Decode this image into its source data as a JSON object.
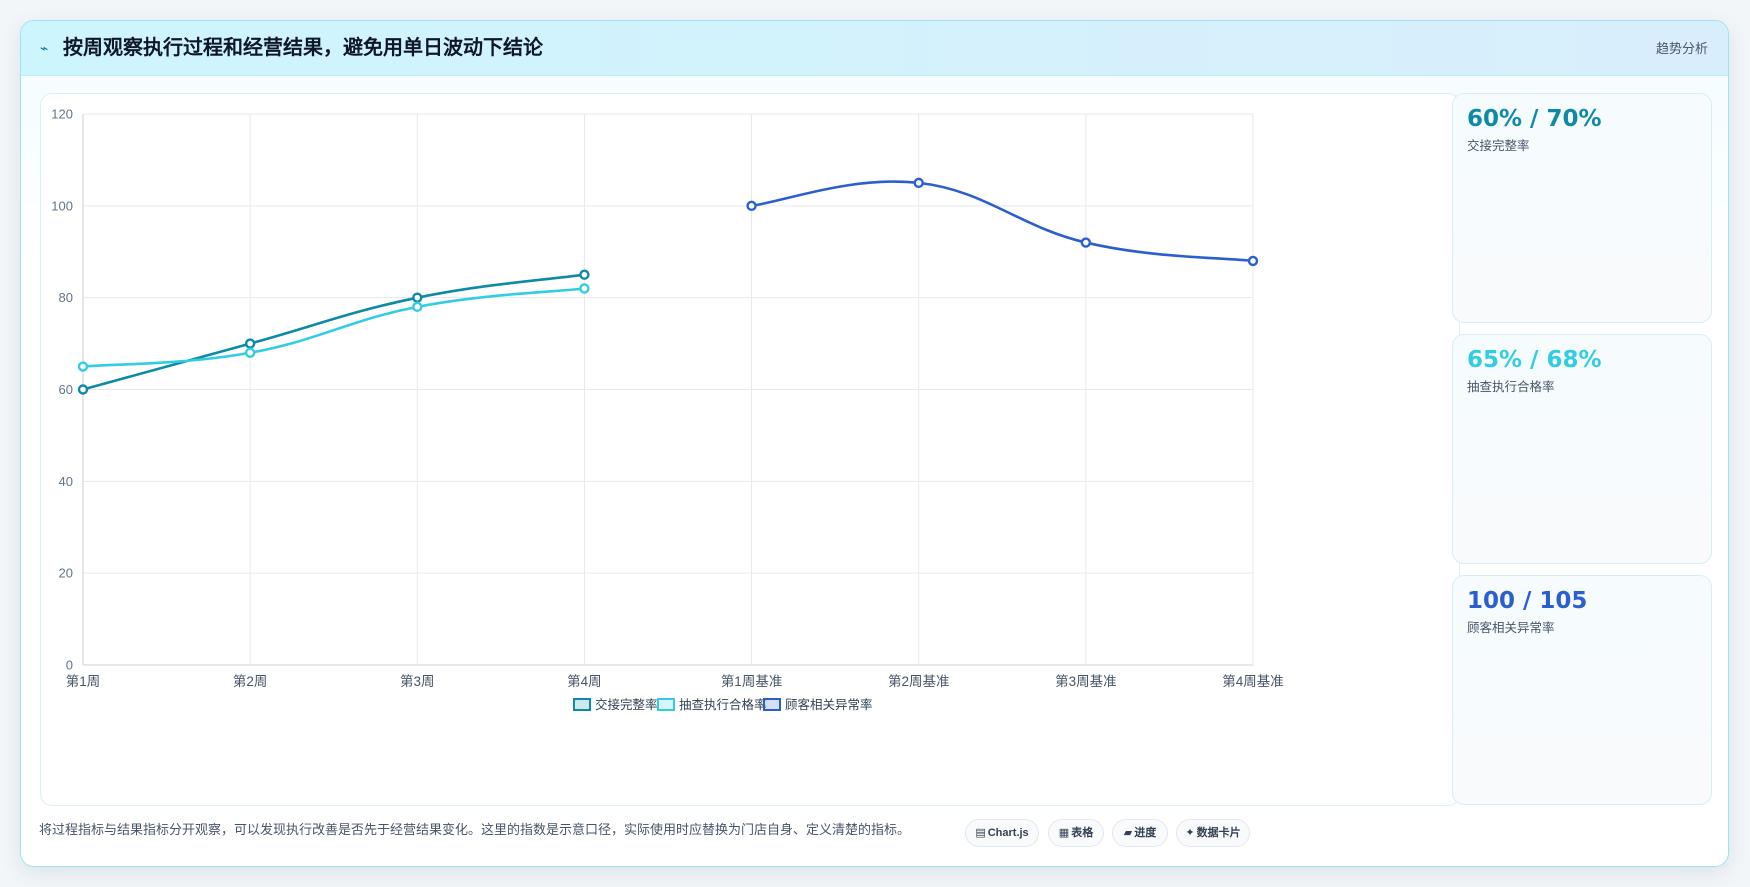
{
  "header": {
    "icon": "lightning-icon",
    "title": "按周观察执行过程和经营结果，避免用单日波动下结论",
    "tag": "趋势分析"
  },
  "chart_data": {
    "type": "line",
    "categories": [
      "第1周",
      "第2周",
      "第3周",
      "第4周",
      "第1周基准",
      "第2周基准",
      "第3周基准",
      "第4周基准"
    ],
    "ylim": [
      0,
      120
    ],
    "yticks": [
      0,
      20,
      40,
      60,
      80,
      100,
      120
    ],
    "grid": true,
    "legend_position": "bottom",
    "series": [
      {
        "name": "交接完整率",
        "color": "#0e8aa6",
        "values": [
          60,
          70,
          80,
          85,
          null,
          null,
          null,
          null
        ]
      },
      {
        "name": "抽查执行合格率",
        "color": "#32cde3",
        "values": [
          65,
          68,
          78,
          82,
          null,
          null,
          null,
          null
        ]
      },
      {
        "name": "顾客相关异常率",
        "color": "#2b5fd0",
        "values": [
          null,
          null,
          null,
          null,
          100,
          105,
          92,
          88
        ]
      }
    ]
  },
  "kpis": [
    {
      "value": "60% / 70%",
      "label": "交接完整率",
      "color": "#0e8aa6"
    },
    {
      "value": "65% / 68%",
      "label": "抽查执行合格率",
      "color": "#32cde3"
    },
    {
      "value": "100 / 105",
      "label": "顾客相关异常率",
      "color": "#2b5fd0"
    }
  ],
  "footer": {
    "note": "将过程指标与结果指标分开观察，可以发现执行改善是否先于经营结果变化。这里的指数是示意口径，实际使用时应替换为门店自身、定义清楚的指标。",
    "pills": [
      {
        "icon": "chart-icon",
        "glyph": "▤",
        "label": "Chart.js"
      },
      {
        "icon": "table-icon",
        "glyph": "▦",
        "label": "表格"
      },
      {
        "icon": "progress-icon",
        "glyph": "▰",
        "label": "进度"
      },
      {
        "icon": "sparkle-icon",
        "glyph": "✦",
        "label": "数据卡片"
      }
    ]
  }
}
